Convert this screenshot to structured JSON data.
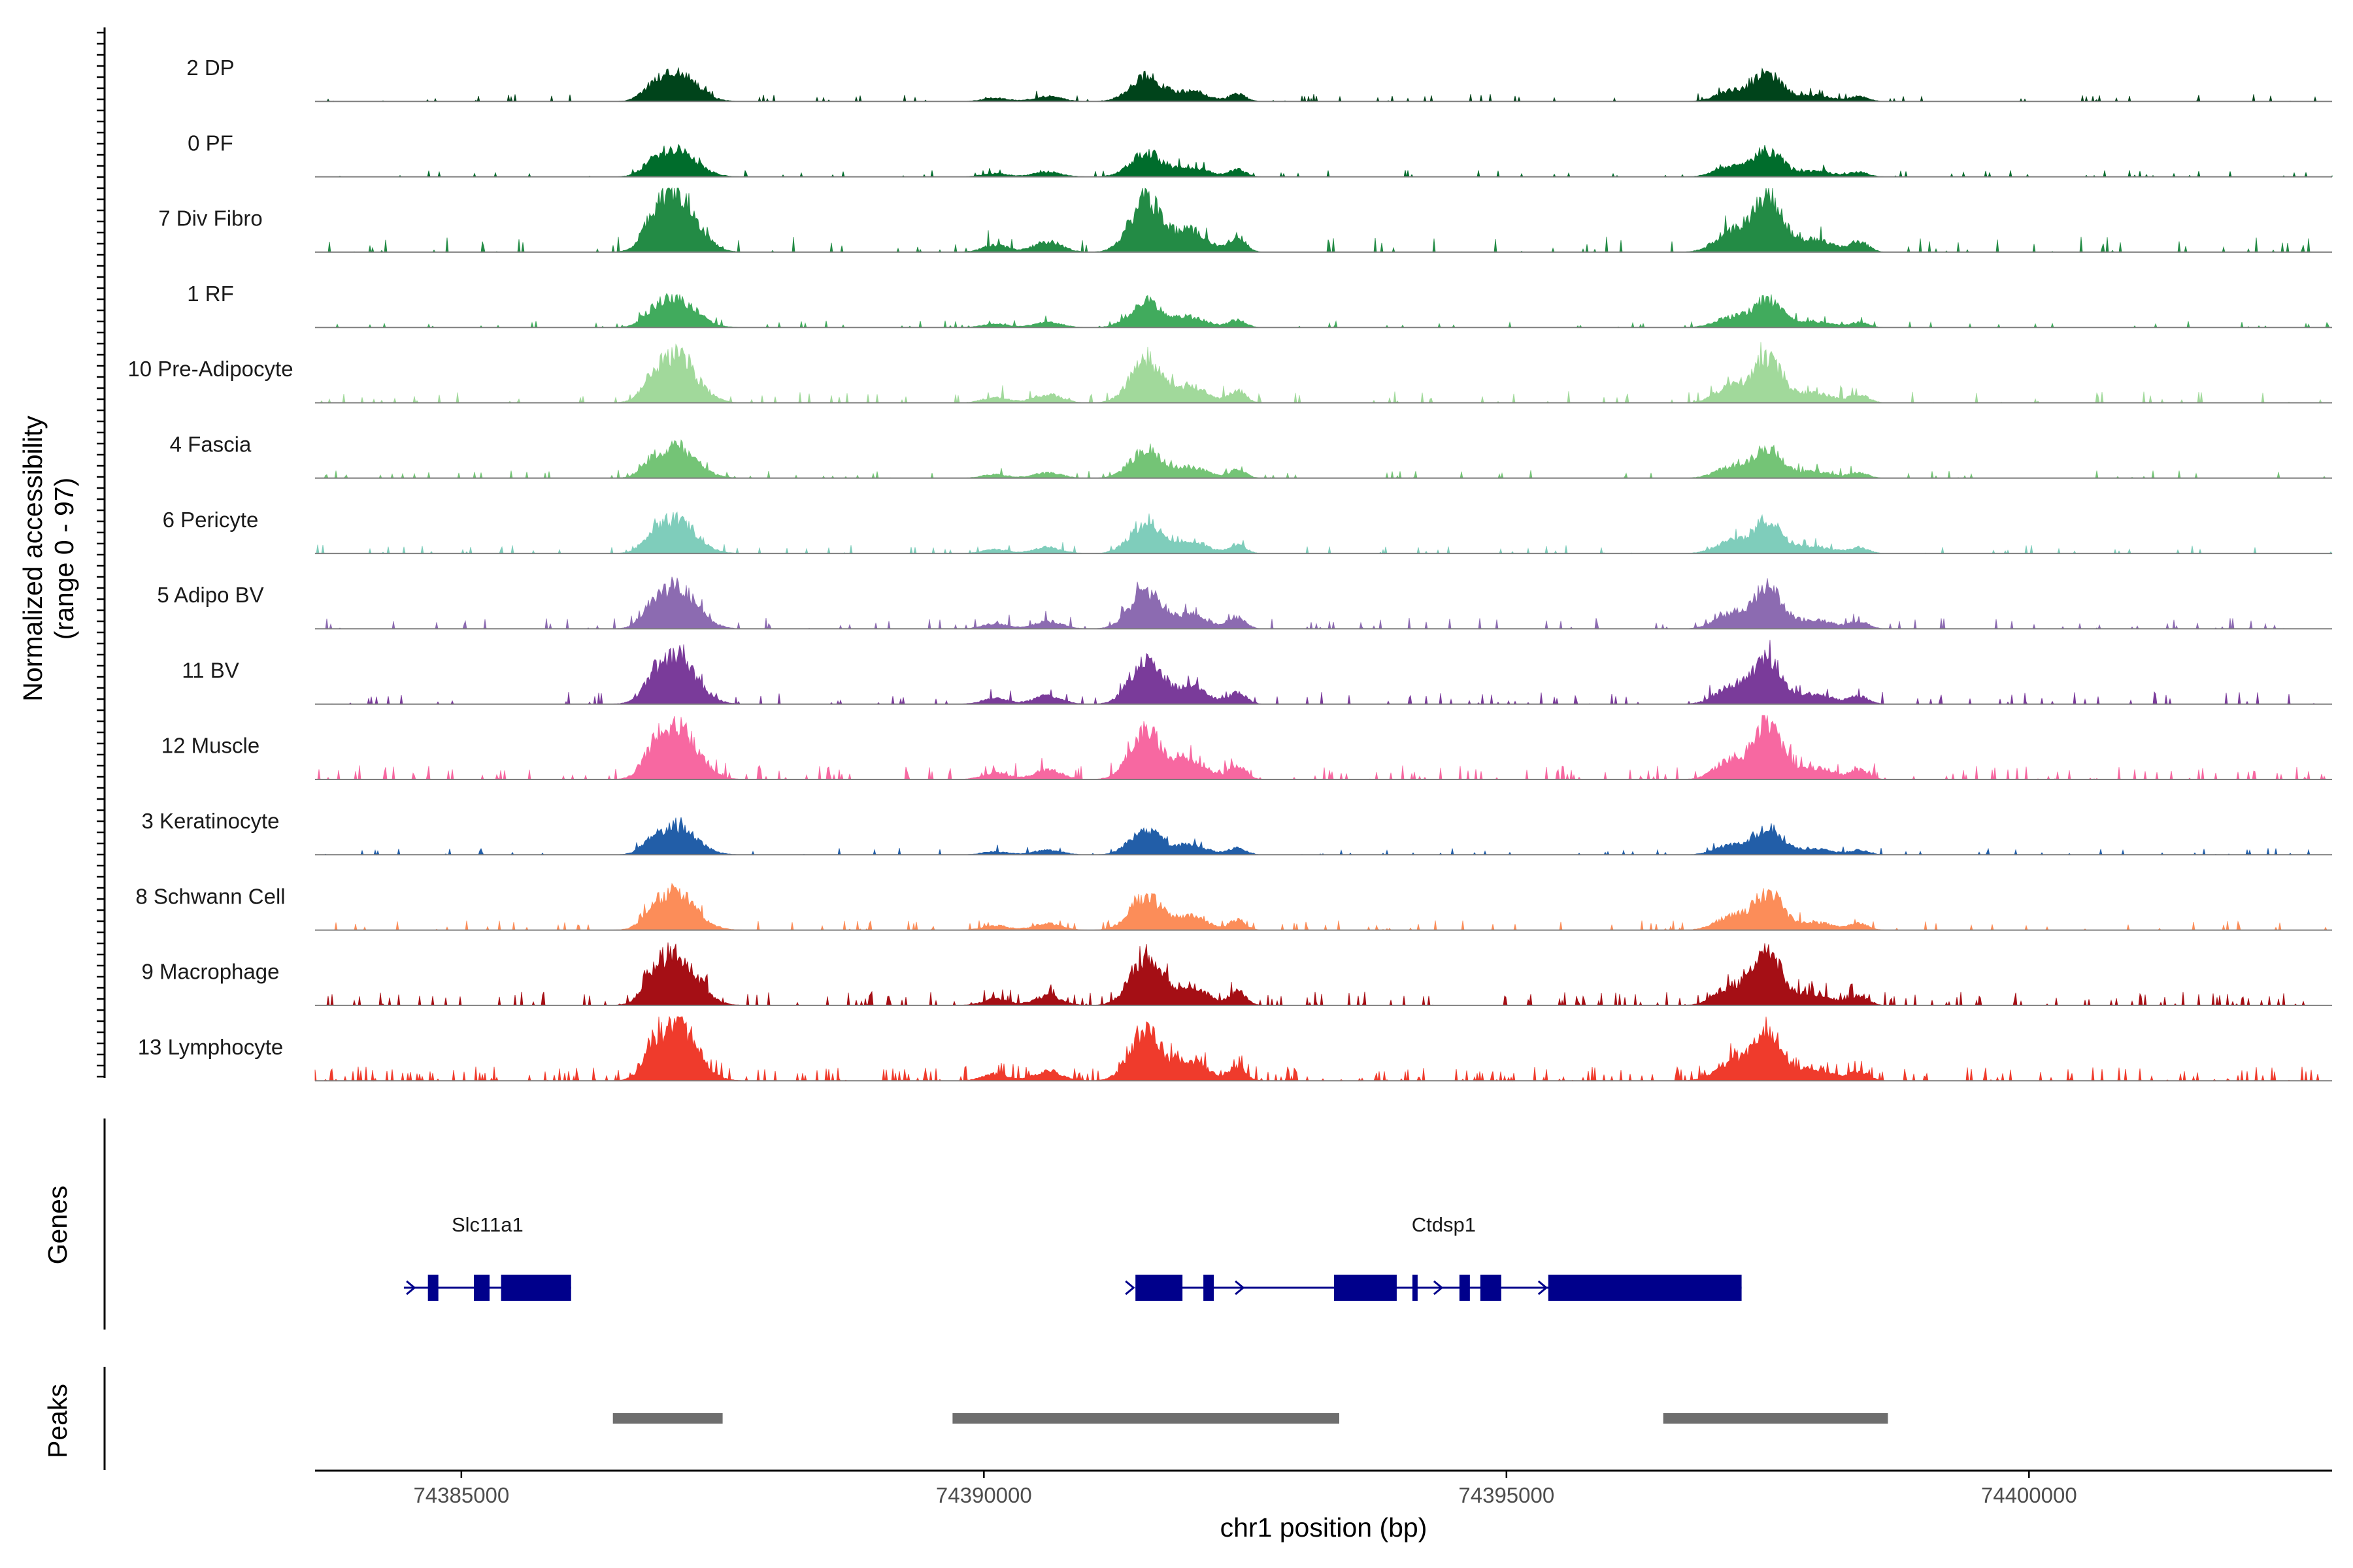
{
  "chart_data": {
    "type": "area",
    "region": {
      "chrom": "chr1",
      "start": 74383600,
      "end": 74402900
    },
    "xlabel": "chr1 position (bp)",
    "ylabel": [
      "Normalized accessibility",
      "(range 0 - 97)"
    ],
    "yrange": [
      0,
      97
    ],
    "xticks": [
      {
        "value": 74385000,
        "label": "74385000"
      },
      {
        "value": 74390000,
        "label": "74390000"
      },
      {
        "value": 74395000,
        "label": "74395000"
      },
      {
        "value": 74400000,
        "label": "74400000"
      }
    ],
    "tracks": [
      {
        "name": "2 DP",
        "color": "#00441b",
        "scale": 0.42,
        "noise": 0.06,
        "seed": 11
      },
      {
        "name": "0 PF",
        "color": "#006d2c",
        "scale": 0.4,
        "noise": 0.06,
        "seed": 23
      },
      {
        "name": "7 Div Fibro",
        "color": "#238b45",
        "scale": 0.88,
        "noise": 0.07,
        "seed": 37
      },
      {
        "name": "1 RF",
        "color": "#41ab5d",
        "scale": 0.42,
        "noise": 0.06,
        "seed": 41
      },
      {
        "name": "10 Pre-Adipocyte",
        "color": "#a1d99b",
        "scale": 0.68,
        "noise": 0.08,
        "seed": 53
      },
      {
        "name": "4 Fascia",
        "color": "#74c476",
        "scale": 0.45,
        "noise": 0.06,
        "seed": 67
      },
      {
        "name": "6 Pericyte",
        "color": "#7fcdbb",
        "scale": 0.5,
        "noise": 0.06,
        "seed": 71
      },
      {
        "name": "5 Adipo BV",
        "color": "#8c6bb1",
        "scale": 0.62,
        "noise": 0.08,
        "seed": 83
      },
      {
        "name": "11 BV",
        "color": "#7a3b9a",
        "scale": 0.7,
        "noise": 0.1,
        "seed": 97
      },
      {
        "name": "12 Muscle",
        "color": "#f768a1",
        "scale": 0.8,
        "noise": 0.12,
        "seed": 101
      },
      {
        "name": "3 Keratinocyte",
        "color": "#225ea8",
        "scale": 0.4,
        "noise": 0.06,
        "seed": 113
      },
      {
        "name": "8 Schwann Cell",
        "color": "#fc8d59",
        "scale": 0.55,
        "noise": 0.08,
        "seed": 127
      },
      {
        "name": "9 Macrophage",
        "color": "#a50f15",
        "scale": 0.78,
        "noise": 0.14,
        "seed": 131
      },
      {
        "name": "13 Lymphocyte",
        "color": "#ef3b2c",
        "scale": 0.8,
        "noise": 0.22,
        "seed": 149
      }
    ],
    "peak_centers": [
      74387000,
      74391550,
      74397500
    ],
    "genes_label": "Genes",
    "peaks_label": "Peaks",
    "genes": [
      {
        "name": "Slc11a1",
        "label_pos": 74385250,
        "start": 74384450,
        "end": 74386050,
        "strand": "+",
        "exons": [
          [
            74384680,
            74384780
          ],
          [
            74385120,
            74385270
          ],
          [
            74385380,
            74386050
          ]
        ],
        "arrows": [
          74384520
        ]
      },
      {
        "name": "Ctdsp1",
        "label_pos": 74394400,
        "start": 74391450,
        "end": 74397250,
        "strand": "+",
        "exons": [
          [
            74391450,
            74391900
          ],
          [
            74392100,
            74392200
          ],
          [
            74393350,
            74393950
          ],
          [
            74394100,
            74394150
          ],
          [
            74394550,
            74394650
          ],
          [
            74394750,
            74394950
          ],
          [
            74395400,
            74397250
          ]
        ],
        "arrows": [
          74391400,
          74392450,
          74394350,
          74395350
        ]
      }
    ],
    "peaks": [
      {
        "start": 74386450,
        "end": 74387500
      },
      {
        "start": 74389700,
        "end": 74393400
      },
      {
        "start": 74396500,
        "end": 74398650
      }
    ],
    "colors": {
      "gene": "#00008b",
      "peak": "#6e6e6e",
      "baseline": "#7f7f7f",
      "axis": "#000000"
    }
  }
}
